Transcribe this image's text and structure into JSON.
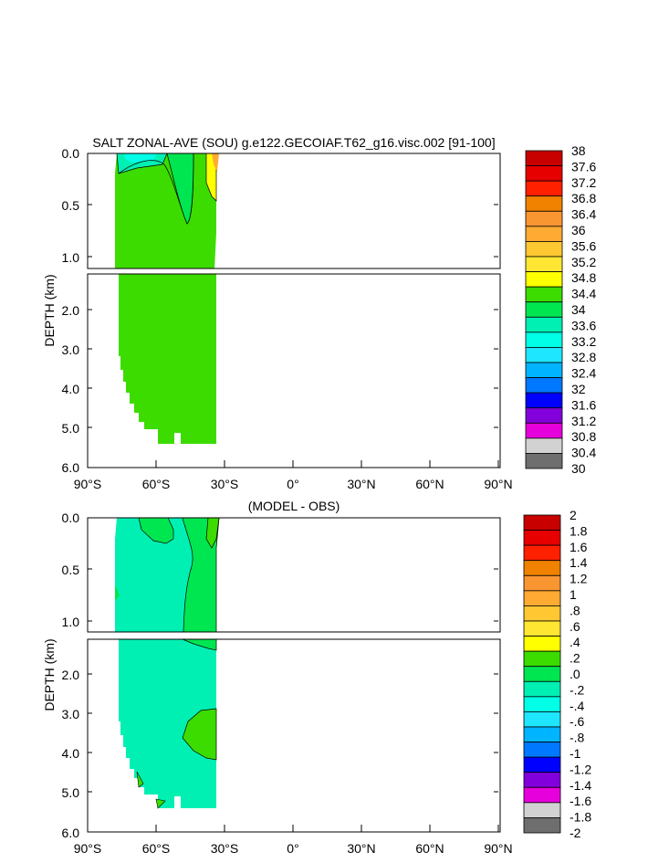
{
  "chart_data": [
    {
      "type": "contour",
      "title": "SALT ZONAL-AVE (SOU) g.e122.GECOIAF.T62_g16.visc.002 [91-100]",
      "ylabel": "DEPTH (km)",
      "x_ticks": [
        "90°S",
        "60°S",
        "30°S",
        "0°",
        "30°N",
        "60°N",
        "90°N"
      ],
      "y_ticks_upper": [
        "0.0",
        "0.5",
        "1.0"
      ],
      "y_ticks_lower": [
        "2.0",
        "3.0",
        "4.0",
        "5.0",
        "6.0"
      ],
      "xlim": [
        -90,
        90
      ],
      "ylim_upper_km": [
        0,
        1.1
      ],
      "ylim_lower_km": [
        1.1,
        6.0
      ],
      "data_extent_lat": [
        -78,
        -34
      ],
      "colorbar_labels": [
        "38",
        "37.6",
        "37.2",
        "36.8",
        "36.4",
        "36",
        "35.6",
        "35.2",
        "34.8",
        "34.4",
        "34",
        "33.6",
        "33.2",
        "32.8",
        "32.4",
        "32",
        "31.6",
        "31.2",
        "30.8",
        "30.4",
        "30"
      ],
      "colorbar_colors": [
        "#c80000",
        "#e60000",
        "#ff2000",
        "#f08200",
        "#fa9632",
        "#ffaa32",
        "#ffc832",
        "#ffe632",
        "#ffff00",
        "#3cdc00",
        "#00e650",
        "#00f0b4",
        "#00ffe6",
        "#1ee6ff",
        "#00b4ff",
        "#0078ff",
        "#0000ff",
        "#8200dc",
        "#e600dc",
        "#d2d2d2",
        "#6e6e6e"
      ]
    },
    {
      "type": "contour",
      "title": "(MODEL - OBS)",
      "ylabel": "DEPTH (km)",
      "x_ticks": [
        "90°S",
        "60°S",
        "30°S",
        "0°",
        "30°N",
        "60°N",
        "90°N"
      ],
      "y_ticks_upper": [
        "0.0",
        "0.5",
        "1.0"
      ],
      "y_ticks_lower": [
        "2.0",
        "3.0",
        "4.0",
        "5.0",
        "6.0"
      ],
      "xlim": [
        -90,
        90
      ],
      "ylim_upper_km": [
        0,
        1.1
      ],
      "ylim_lower_km": [
        1.1,
        6.0
      ],
      "data_extent_lat": [
        -78,
        -34
      ],
      "colorbar_labels": [
        "2",
        "1.8",
        "1.6",
        "1.4",
        "1.2",
        "1",
        ".8",
        ".6",
        ".4",
        ".2",
        ".0",
        "-.2",
        "-.4",
        "-.6",
        "-.8",
        "-1",
        "-1.2",
        "-1.4",
        "-1.6",
        "-1.8",
        "-2"
      ],
      "colorbar_colors": [
        "#c80000",
        "#e60000",
        "#ff2000",
        "#f08200",
        "#fa9632",
        "#ffaa32",
        "#ffc832",
        "#ffe632",
        "#ffff00",
        "#3cdc00",
        "#00e650",
        "#00f0b4",
        "#00ffe6",
        "#1ee6ff",
        "#00b4ff",
        "#0078ff",
        "#0000ff",
        "#8200dc",
        "#e600dc",
        "#d2d2d2",
        "#6e6e6e"
      ]
    }
  ]
}
